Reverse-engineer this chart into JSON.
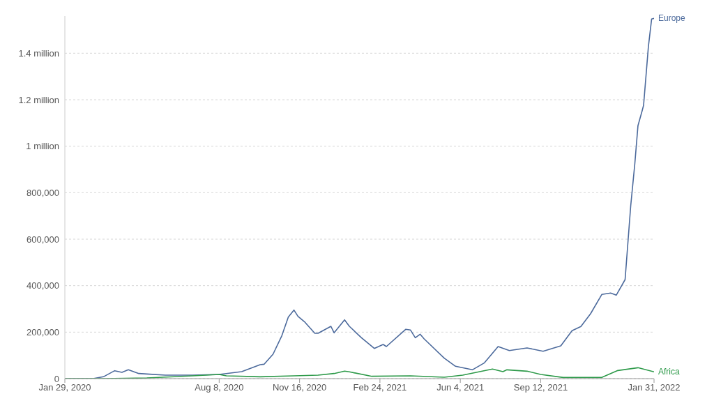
{
  "chart_data": {
    "type": "line",
    "xlim": [
      "2020-01-29",
      "2022-01-31"
    ],
    "xticks": [
      {
        "value": "2020-01-29",
        "label": "Jan 29, 2020"
      },
      {
        "value": "2020-08-08",
        "label": "Aug 8, 2020"
      },
      {
        "value": "2020-11-16",
        "label": "Nov 16, 2020"
      },
      {
        "value": "2021-02-24",
        "label": "Feb 24, 2021"
      },
      {
        "value": "2021-06-04",
        "label": "Jun 4, 2021"
      },
      {
        "value": "2021-09-12",
        "label": "Sep 12, 2021"
      },
      {
        "value": "2022-01-31",
        "label": "Jan 31, 2022"
      }
    ],
    "ylim": [
      0,
      1560000
    ],
    "yticks": [
      0,
      {
        "value": 200000,
        "label": "200,000"
      },
      {
        "value": 400000,
        "label": "400,000"
      },
      {
        "value": 600000,
        "label": "600,000"
      },
      {
        "value": 800000,
        "label": "800,000"
      },
      {
        "value": 1000000,
        "label": "1 million"
      },
      {
        "value": 1200000,
        "label": "1.2 million"
      },
      {
        "value": 1400000,
        "label": "1.4 million"
      }
    ],
    "grid": "y",
    "marker": "none",
    "line_style": "solid",
    "series": [
      {
        "name": "Europe",
        "color": "#4c6a9c",
        "x": [
          "2020-01-29",
          "2020-03-04",
          "2020-03-17",
          "2020-03-31",
          "2020-04-09",
          "2020-04-17",
          "2020-04-30",
          "2020-05-10",
          "2020-06-02",
          "2020-07-06",
          "2020-08-08",
          "2020-09-05",
          "2020-09-28",
          "2020-10-03",
          "2020-10-14",
          "2020-10-25",
          "2020-11-02",
          "2020-11-09",
          "2020-11-14",
          "2020-11-22",
          "2020-12-05",
          "2020-12-09",
          "2020-12-25",
          "2020-12-29",
          "2021-01-11",
          "2021-01-17",
          "2021-02-01",
          "2021-02-17",
          "2021-02-28",
          "2021-03-04",
          "2021-03-28",
          "2021-04-03",
          "2021-04-09",
          "2021-04-15",
          "2021-04-20",
          "2021-05-15",
          "2021-05-29",
          "2021-06-19",
          "2021-07-04",
          "2021-07-21",
          "2021-08-04",
          "2021-08-26",
          "2021-09-15",
          "2021-10-07",
          "2021-10-21",
          "2021-11-01",
          "2021-11-13",
          "2021-11-27",
          "2021-12-08",
          "2021-12-15",
          "2021-12-26",
          "2022-01-02",
          "2022-01-07",
          "2022-01-11",
          "2022-01-16",
          "2022-01-18",
          "2022-01-24",
          "2022-01-28",
          "2022-01-31"
        ],
        "values": [
          0,
          0,
          8000,
          34000,
          27000,
          38000,
          22000,
          20000,
          15000,
          15000,
          18000,
          30000,
          60000,
          62000,
          105000,
          185000,
          265000,
          295000,
          268000,
          245000,
          195000,
          195000,
          225000,
          197000,
          253000,
          225000,
          176000,
          130000,
          147000,
          138000,
          212000,
          209000,
          176000,
          191000,
          171000,
          88000,
          53000,
          38000,
          68000,
          138000,
          121000,
          132000,
          118000,
          141000,
          206000,
          224000,
          279000,
          362000,
          368000,
          359000,
          426000,
          744000,
          921000,
          1088000,
          1150000,
          1176000,
          1429000,
          1547000,
          1550000
        ]
      },
      {
        "name": "Africa",
        "color": "#2e9a4a",
        "x": [
          "2020-01-29",
          "2020-03-17",
          "2020-05-10",
          "2020-07-06",
          "2020-08-08",
          "2020-08-17",
          "2020-09-28",
          "2020-11-09",
          "2020-12-09",
          "2020-12-29",
          "2021-01-11",
          "2021-01-17",
          "2021-02-14",
          "2021-04-03",
          "2021-05-15",
          "2021-06-07",
          "2021-07-14",
          "2021-07-27",
          "2021-08-01",
          "2021-08-26",
          "2021-09-12",
          "2021-10-10",
          "2021-11-27",
          "2021-12-17",
          "2022-01-11",
          "2022-01-31"
        ],
        "values": [
          0,
          0,
          3000,
          12000,
          18000,
          12000,
          8000,
          12000,
          15000,
          22000,
          32000,
          29000,
          10000,
          12000,
          6000,
          15000,
          41000,
          30000,
          38000,
          32000,
          18000,
          5000,
          5000,
          35000,
          47000,
          29000
        ]
      }
    ]
  }
}
